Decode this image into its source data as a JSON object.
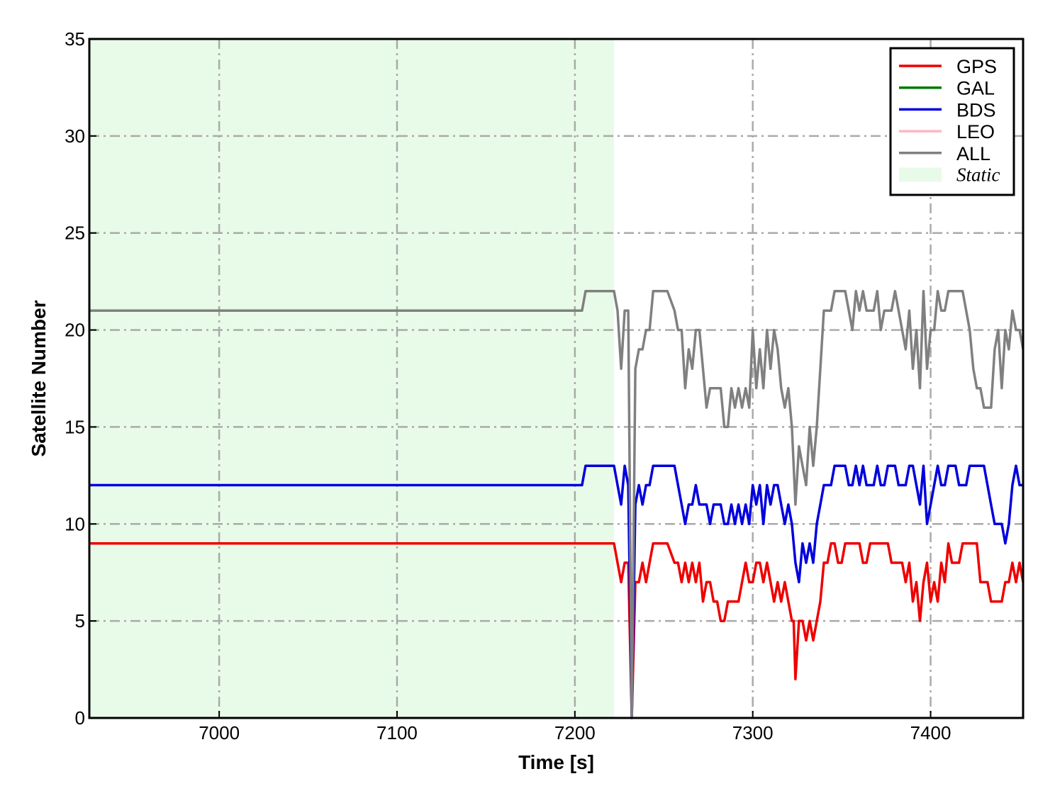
{
  "chart_data": {
    "type": "line",
    "xlabel": "Time [s]",
    "ylabel": "Satellite Number",
    "xlim": [
      6927,
      7452
    ],
    "ylim": [
      0,
      35
    ],
    "xticks": [
      7000,
      7100,
      7200,
      7300,
      7400
    ],
    "yticks": [
      0,
      5,
      10,
      15,
      20,
      25,
      30,
      35
    ],
    "grid": true,
    "legend_position": "top-right",
    "shaded_region": {
      "label": "Static",
      "x": [
        6927,
        7222
      ],
      "color": "#e8fbe8"
    },
    "series": [
      {
        "name": "GPS",
        "color": "#ee0000",
        "x": [
          6927,
          7222,
          7224,
          7226,
          7228,
          7230,
          7232,
          7234,
          7236,
          7238,
          7240,
          7242,
          7244,
          7246,
          7248,
          7250,
          7252,
          7256,
          7258,
          7260,
          7262,
          7264,
          7266,
          7268,
          7270,
          7272,
          7274,
          7276,
          7278,
          7280,
          7282,
          7284,
          7286,
          7288,
          7290,
          7292,
          7294,
          7296,
          7298,
          7300,
          7302,
          7304,
          7306,
          7308,
          7310,
          7312,
          7314,
          7316,
          7318,
          7320,
          7322,
          7323,
          7324,
          7326,
          7328,
          7330,
          7332,
          7334,
          7336,
          7338,
          7340,
          7342,
          7344,
          7346,
          7348,
          7350,
          7352,
          7354,
          7356,
          7358,
          7360,
          7362,
          7364,
          7366,
          7368,
          7370,
          7372,
          7374,
          7376,
          7378,
          7380,
          7382,
          7384,
          7386,
          7388,
          7390,
          7392,
          7394,
          7396,
          7398,
          7400,
          7402,
          7404,
          7406,
          7408,
          7410,
          7412,
          7414,
          7416,
          7418,
          7420,
          7422,
          7424,
          7426,
          7428,
          7430,
          7432,
          7434,
          7436,
          7438,
          7440,
          7442,
          7444,
          7446,
          7448,
          7450,
          7452
        ],
        "y": [
          9,
          9,
          8,
          7,
          8,
          8,
          0,
          7,
          7,
          8,
          7,
          8,
          9,
          9,
          9,
          9,
          9,
          8,
          8,
          7,
          8,
          7,
          8,
          7,
          8,
          6,
          7,
          7,
          6,
          6,
          5,
          5,
          6,
          6,
          6,
          6,
          7,
          8,
          7,
          7,
          8,
          8,
          7,
          8,
          7,
          6,
          7,
          6,
          7,
          6,
          5,
          5,
          2,
          5,
          5,
          4,
          5,
          4,
          5,
          6,
          8,
          8,
          9,
          9,
          8,
          8,
          9,
          9,
          9,
          9,
          9,
          8,
          8,
          9,
          9,
          9,
          9,
          9,
          9,
          8,
          8,
          8,
          8,
          7,
          8,
          6,
          7,
          5,
          7,
          8,
          6,
          7,
          6,
          8,
          7,
          9,
          8,
          8,
          8,
          9,
          9,
          9,
          9,
          9,
          7,
          7,
          7,
          6,
          6,
          6,
          6,
          7,
          7,
          8,
          7,
          8,
          7
        ]
      },
      {
        "name": "GAL",
        "color": "#007700",
        "x": [],
        "y": []
      },
      {
        "name": "BDS",
        "color": "#0000dd",
        "x": [
          6927,
          7204,
          7206,
          7208,
          7212,
          7216,
          7220,
          7222,
          7224,
          7226,
          7228,
          7230,
          7232,
          7234,
          7236,
          7238,
          7240,
          7242,
          7244,
          7246,
          7248,
          7252,
          7256,
          7258,
          7260,
          7262,
          7264,
          7266,
          7268,
          7270,
          7272,
          7274,
          7276,
          7278,
          7280,
          7282,
          7284,
          7286,
          7288,
          7290,
          7292,
          7294,
          7296,
          7298,
          7300,
          7302,
          7304,
          7306,
          7308,
          7310,
          7312,
          7314,
          7316,
          7318,
          7320,
          7322,
          7324,
          7326,
          7328,
          7330,
          7332,
          7334,
          7336,
          7338,
          7340,
          7342,
          7344,
          7346,
          7348,
          7350,
          7352,
          7354,
          7356,
          7358,
          7360,
          7362,
          7364,
          7366,
          7368,
          7370,
          7372,
          7374,
          7376,
          7378,
          7380,
          7382,
          7384,
          7386,
          7388,
          7390,
          7392,
          7394,
          7396,
          7398,
          7400,
          7402,
          7404,
          7406,
          7408,
          7410,
          7412,
          7414,
          7416,
          7418,
          7420,
          7422,
          7424,
          7426,
          7428,
          7430,
          7432,
          7434,
          7436,
          7438,
          7440,
          7442,
          7444,
          7446,
          7448,
          7450,
          7452
        ],
        "y": [
          12,
          12,
          13,
          13,
          13,
          13,
          13,
          13,
          12,
          11,
          13,
          12,
          0,
          11,
          12,
          11,
          12,
          12,
          13,
          13,
          13,
          13,
          13,
          12,
          11,
          10,
          11,
          11,
          12,
          11,
          11,
          11,
          10,
          11,
          11,
          11,
          10,
          10,
          11,
          10,
          11,
          10,
          11,
          10,
          12,
          11,
          12,
          10,
          12,
          11,
          12,
          12,
          11,
          10,
          11,
          10,
          8,
          7,
          9,
          8,
          9,
          8,
          10,
          11,
          12,
          12,
          12,
          13,
          13,
          13,
          13,
          12,
          12,
          13,
          12,
          13,
          12,
          12,
          12,
          13,
          12,
          12,
          13,
          13,
          13,
          12,
          12,
          12,
          13,
          13,
          12,
          11,
          13,
          10,
          11,
          12,
          13,
          12,
          12,
          13,
          13,
          13,
          12,
          12,
          12,
          13,
          13,
          13,
          13,
          13,
          12,
          11,
          10,
          10,
          10,
          9,
          10,
          12,
          13,
          12,
          12
        ]
      },
      {
        "name": "LEO",
        "color": "#ffb6c1",
        "x": [],
        "y": []
      },
      {
        "name": "ALL",
        "color": "#808080",
        "x": [
          6927,
          7204,
          7206,
          7208,
          7212,
          7216,
          7220,
          7222,
          7224,
          7226,
          7228,
          7230,
          7232,
          7234,
          7236,
          7238,
          7240,
          7242,
          7244,
          7246,
          7248,
          7252,
          7256,
          7258,
          7260,
          7262,
          7264,
          7266,
          7268,
          7270,
          7272,
          7274,
          7276,
          7278,
          7280,
          7282,
          7284,
          7286,
          7288,
          7290,
          7292,
          7294,
          7296,
          7298,
          7300,
          7302,
          7304,
          7306,
          7308,
          7310,
          7312,
          7314,
          7316,
          7318,
          7320,
          7322,
          7324,
          7326,
          7328,
          7330,
          7332,
          7334,
          7336,
          7338,
          7340,
          7342,
          7344,
          7346,
          7348,
          7350,
          7352,
          7354,
          7356,
          7358,
          7360,
          7362,
          7364,
          7366,
          7368,
          7370,
          7372,
          7374,
          7376,
          7378,
          7380,
          7382,
          7384,
          7386,
          7388,
          7390,
          7392,
          7394,
          7396,
          7398,
          7400,
          7402,
          7404,
          7406,
          7408,
          7410,
          7412,
          7414,
          7416,
          7418,
          7420,
          7422,
          7424,
          7426,
          7428,
          7430,
          7432,
          7434,
          7436,
          7438,
          7440,
          7442,
          7444,
          7446,
          7448,
          7450,
          7452
        ],
        "y": [
          21,
          21,
          22,
          22,
          22,
          22,
          22,
          22,
          21,
          18,
          21,
          21,
          0,
          18,
          19,
          19,
          20,
          20,
          22,
          22,
          22,
          22,
          21,
          20,
          20,
          17,
          19,
          18,
          20,
          20,
          18,
          16,
          17,
          17,
          17,
          17,
          15,
          15,
          17,
          16,
          17,
          16,
          17,
          16,
          20,
          17,
          19,
          17,
          20,
          18,
          20,
          19,
          17,
          16,
          17,
          15,
          11,
          14,
          13,
          12,
          15,
          13,
          15,
          18,
          21,
          21,
          21,
          22,
          22,
          22,
          22,
          21,
          20,
          22,
          21,
          22,
          21,
          21,
          21,
          22,
          20,
          21,
          21,
          21,
          22,
          21,
          20,
          19,
          21,
          18,
          20,
          17,
          22,
          18,
          20,
          20,
          22,
          21,
          21,
          22,
          22,
          22,
          22,
          22,
          21,
          20,
          18,
          17,
          17,
          16,
          16,
          16,
          19,
          20,
          17,
          20,
          19,
          21,
          20,
          20,
          19
        ]
      }
    ]
  }
}
